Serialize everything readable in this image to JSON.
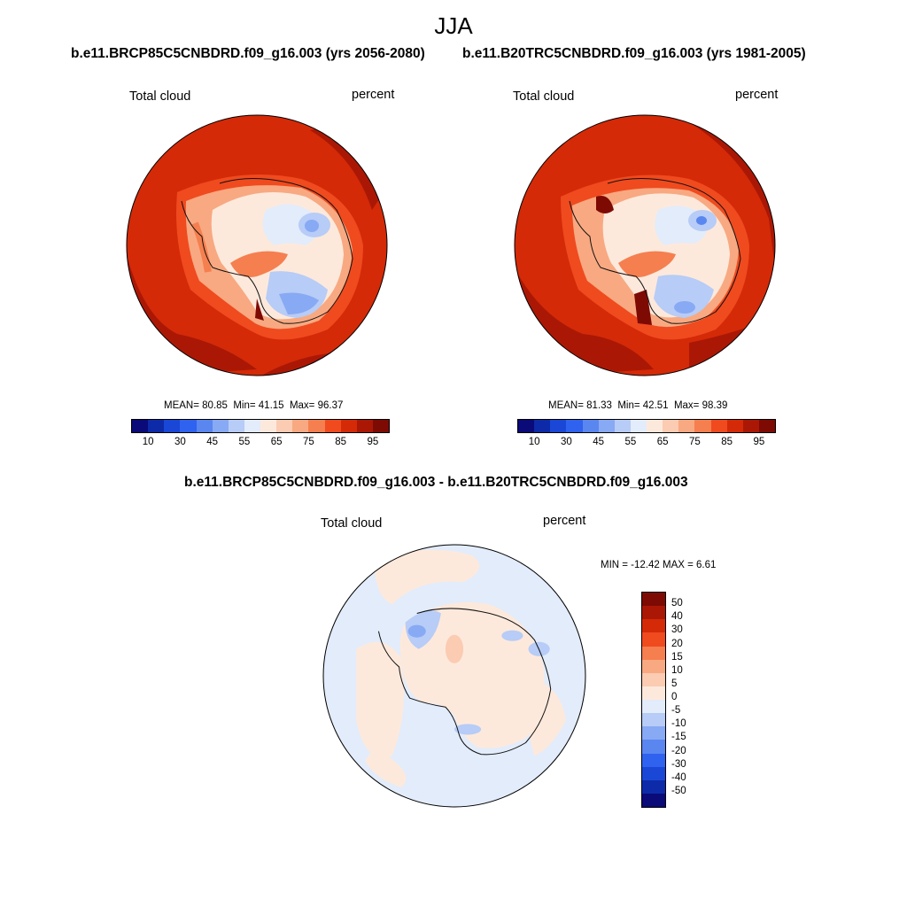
{
  "season_title": "JJA",
  "panels": [
    {
      "run": "b.e11.BRCP85C5CNBDRD.f09_g16.003 (yrs 2056-2080)",
      "variable": "Total cloud",
      "units": "percent",
      "mean_label": "MEAN=",
      "mean": "80.85",
      "min_label": "Min=",
      "min": "41.15",
      "max_label": "Max=",
      "max": "96.37"
    },
    {
      "run": "b.e11.B20TRC5CNBDRD.f09_g16.003 (yrs 1981-2005)",
      "variable": "Total cloud",
      "units": "percent",
      "mean_label": "MEAN=",
      "mean": "81.33",
      "min_label": "Min=",
      "min": "42.51",
      "max_label": "Max=",
      "max": "98.39"
    }
  ],
  "colorbar": {
    "colors": [
      "#0a0a78",
      "#0d2ba8",
      "#1a47d6",
      "#2f62ee",
      "#5a86f0",
      "#88a9f4",
      "#b7ccf6",
      "#e2ecfb",
      "#fde9dc",
      "#fbcbb2",
      "#f8a981",
      "#f57f4f",
      "#f04a1f",
      "#d42a08",
      "#aa1805",
      "#7e0a04"
    ],
    "labels": [
      "10",
      "30",
      "45",
      "55",
      "65",
      "75",
      "85",
      "95"
    ]
  },
  "diff": {
    "title": "b.e11.BRCP85C5CNBDRD.f09_g16.003 - b.e11.B20TRC5CNBDRD.f09_g16.003",
    "variable": "Total cloud",
    "units": "percent",
    "minmax": "MIN = -12.42 MAX =   6.61",
    "colors": [
      "#7e0a04",
      "#aa1805",
      "#d42a08",
      "#f04a1f",
      "#f57f4f",
      "#f8a981",
      "#fbcbb2",
      "#fde9dc",
      "#e2ecfb",
      "#b7ccf6",
      "#88a9f4",
      "#5a86f0",
      "#2f62ee",
      "#1a47d6",
      "#0d2ba8",
      "#0a0a78"
    ],
    "labels": [
      "50",
      "40",
      "30",
      "20",
      "15",
      "10",
      "5",
      "0",
      "-5",
      "-10",
      "-15",
      "-20",
      "-30",
      "-40",
      "-50"
    ]
  }
}
